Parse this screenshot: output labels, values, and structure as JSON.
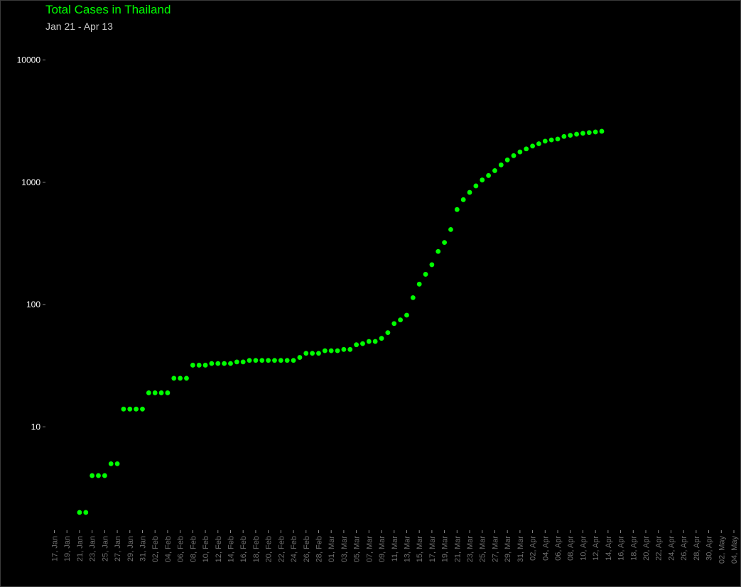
{
  "chart_data": {
    "type": "scatter",
    "title": "Total Cases in Thailand",
    "subtitle": "Jan 21 - Apr 13",
    "xlabel": "",
    "ylabel": "",
    "yscale": "log",
    "ylim": [
      1.2,
      14000
    ],
    "xlim": [
      "2020-01-16",
      "2020-05-05"
    ],
    "grid": false,
    "colors": {
      "background": "#000000",
      "points": "#00ff00",
      "title": "#00ff00",
      "subtitle": "#c8c8c8",
      "y_ticks": "#ffffff",
      "x_ticks": "#6e6e6e"
    },
    "y_ticks": [
      {
        "value": 10,
        "label": "10"
      },
      {
        "value": 100,
        "label": "100"
      },
      {
        "value": 1000,
        "label": "1000"
      },
      {
        "value": 10000,
        "label": "10000"
      }
    ],
    "x_ticks": [
      {
        "date": "2020-01-17",
        "label": "17, Jan"
      },
      {
        "date": "2020-01-19",
        "label": "19, Jan"
      },
      {
        "date": "2020-01-21",
        "label": "21, Jan"
      },
      {
        "date": "2020-01-23",
        "label": "23, Jan"
      },
      {
        "date": "2020-01-25",
        "label": "25, Jan"
      },
      {
        "date": "2020-01-27",
        "label": "27, Jan"
      },
      {
        "date": "2020-01-29",
        "label": "29, Jan"
      },
      {
        "date": "2020-01-31",
        "label": "31, Jan"
      },
      {
        "date": "2020-02-02",
        "label": "02, Feb"
      },
      {
        "date": "2020-02-04",
        "label": "04, Feb"
      },
      {
        "date": "2020-02-06",
        "label": "06, Feb"
      },
      {
        "date": "2020-02-08",
        "label": "08, Feb"
      },
      {
        "date": "2020-02-10",
        "label": "10, Feb"
      },
      {
        "date": "2020-02-12",
        "label": "12, Feb"
      },
      {
        "date": "2020-02-14",
        "label": "14, Feb"
      },
      {
        "date": "2020-02-16",
        "label": "16, Feb"
      },
      {
        "date": "2020-02-18",
        "label": "18, Feb"
      },
      {
        "date": "2020-02-20",
        "label": "20, Feb"
      },
      {
        "date": "2020-02-22",
        "label": "22, Feb"
      },
      {
        "date": "2020-02-24",
        "label": "24, Feb"
      },
      {
        "date": "2020-02-26",
        "label": "26, Feb"
      },
      {
        "date": "2020-02-28",
        "label": "28, Feb"
      },
      {
        "date": "2020-03-01",
        "label": "01, Mar"
      },
      {
        "date": "2020-03-03",
        "label": "03, Mar"
      },
      {
        "date": "2020-03-05",
        "label": "05, Mar"
      },
      {
        "date": "2020-03-07",
        "label": "07, Mar"
      },
      {
        "date": "2020-03-09",
        "label": "09, Mar"
      },
      {
        "date": "2020-03-11",
        "label": "11, Mar"
      },
      {
        "date": "2020-03-13",
        "label": "13, Mar"
      },
      {
        "date": "2020-03-15",
        "label": "15, Mar"
      },
      {
        "date": "2020-03-17",
        "label": "17, Mar"
      },
      {
        "date": "2020-03-19",
        "label": "19, Mar"
      },
      {
        "date": "2020-03-21",
        "label": "21, Mar"
      },
      {
        "date": "2020-03-23",
        "label": "23, Mar"
      },
      {
        "date": "2020-03-25",
        "label": "25, Mar"
      },
      {
        "date": "2020-03-27",
        "label": "27, Mar"
      },
      {
        "date": "2020-03-29",
        "label": "29, Mar"
      },
      {
        "date": "2020-03-31",
        "label": "31, Mar"
      },
      {
        "date": "2020-04-02",
        "label": "02, Apr"
      },
      {
        "date": "2020-04-04",
        "label": "04, Apr"
      },
      {
        "date": "2020-04-06",
        "label": "06, Apr"
      },
      {
        "date": "2020-04-08",
        "label": "08, Apr"
      },
      {
        "date": "2020-04-10",
        "label": "10, Apr"
      },
      {
        "date": "2020-04-12",
        "label": "12, Apr"
      },
      {
        "date": "2020-04-14",
        "label": "14, Apr"
      },
      {
        "date": "2020-04-16",
        "label": "16, Apr"
      },
      {
        "date": "2020-04-18",
        "label": "18, Apr"
      },
      {
        "date": "2020-04-20",
        "label": "20, Apr"
      },
      {
        "date": "2020-04-22",
        "label": "22, Apr"
      },
      {
        "date": "2020-04-24",
        "label": "24, Apr"
      },
      {
        "date": "2020-04-26",
        "label": "26, Apr"
      },
      {
        "date": "2020-04-28",
        "label": "28, Apr"
      },
      {
        "date": "2020-04-30",
        "label": "30, Apr"
      },
      {
        "date": "2020-05-02",
        "label": "02, May"
      },
      {
        "date": "2020-05-04",
        "label": "04, May"
      }
    ],
    "series": [
      {
        "points": [
          {
            "x": "2020-01-21",
            "y": 2
          },
          {
            "x": "2020-01-22",
            "y": 2
          },
          {
            "x": "2020-01-23",
            "y": 4
          },
          {
            "x": "2020-01-24",
            "y": 4
          },
          {
            "x": "2020-01-25",
            "y": 4
          },
          {
            "x": "2020-01-26",
            "y": 5
          },
          {
            "x": "2020-01-27",
            "y": 5
          },
          {
            "x": "2020-01-28",
            "y": 14
          },
          {
            "x": "2020-01-29",
            "y": 14
          },
          {
            "x": "2020-01-30",
            "y": 14
          },
          {
            "x": "2020-01-31",
            "y": 14
          },
          {
            "x": "2020-02-01",
            "y": 19
          },
          {
            "x": "2020-02-02",
            "y": 19
          },
          {
            "x": "2020-02-03",
            "y": 19
          },
          {
            "x": "2020-02-04",
            "y": 19
          },
          {
            "x": "2020-02-05",
            "y": 25
          },
          {
            "x": "2020-02-06",
            "y": 25
          },
          {
            "x": "2020-02-07",
            "y": 25
          },
          {
            "x": "2020-02-08",
            "y": 32
          },
          {
            "x": "2020-02-09",
            "y": 32
          },
          {
            "x": "2020-02-10",
            "y": 32
          },
          {
            "x": "2020-02-11",
            "y": 33
          },
          {
            "x": "2020-02-12",
            "y": 33
          },
          {
            "x": "2020-02-13",
            "y": 33
          },
          {
            "x": "2020-02-14",
            "y": 33
          },
          {
            "x": "2020-02-15",
            "y": 34
          },
          {
            "x": "2020-02-16",
            "y": 34
          },
          {
            "x": "2020-02-17",
            "y": 35
          },
          {
            "x": "2020-02-18",
            "y": 35
          },
          {
            "x": "2020-02-19",
            "y": 35
          },
          {
            "x": "2020-02-20",
            "y": 35
          },
          {
            "x": "2020-02-21",
            "y": 35
          },
          {
            "x": "2020-02-22",
            "y": 35
          },
          {
            "x": "2020-02-23",
            "y": 35
          },
          {
            "x": "2020-02-24",
            "y": 35
          },
          {
            "x": "2020-02-25",
            "y": 37
          },
          {
            "x": "2020-02-26",
            "y": 40
          },
          {
            "x": "2020-02-27",
            "y": 40
          },
          {
            "x": "2020-02-28",
            "y": 40
          },
          {
            "x": "2020-02-29",
            "y": 42
          },
          {
            "x": "2020-03-01",
            "y": 42
          },
          {
            "x": "2020-03-02",
            "y": 42
          },
          {
            "x": "2020-03-03",
            "y": 43
          },
          {
            "x": "2020-03-04",
            "y": 43
          },
          {
            "x": "2020-03-05",
            "y": 47
          },
          {
            "x": "2020-03-06",
            "y": 48
          },
          {
            "x": "2020-03-07",
            "y": 50
          },
          {
            "x": "2020-03-08",
            "y": 50
          },
          {
            "x": "2020-03-09",
            "y": 53
          },
          {
            "x": "2020-03-10",
            "y": 59
          },
          {
            "x": "2020-03-11",
            "y": 70
          },
          {
            "x": "2020-03-12",
            "y": 75
          },
          {
            "x": "2020-03-13",
            "y": 82
          },
          {
            "x": "2020-03-14",
            "y": 114
          },
          {
            "x": "2020-03-15",
            "y": 147
          },
          {
            "x": "2020-03-16",
            "y": 177
          },
          {
            "x": "2020-03-17",
            "y": 212
          },
          {
            "x": "2020-03-18",
            "y": 272
          },
          {
            "x": "2020-03-19",
            "y": 322
          },
          {
            "x": "2020-03-20",
            "y": 411
          },
          {
            "x": "2020-03-21",
            "y": 599
          },
          {
            "x": "2020-03-22",
            "y": 721
          },
          {
            "x": "2020-03-23",
            "y": 827
          },
          {
            "x": "2020-03-24",
            "y": 934
          },
          {
            "x": "2020-03-25",
            "y": 1045
          },
          {
            "x": "2020-03-26",
            "y": 1136
          },
          {
            "x": "2020-03-27",
            "y": 1245
          },
          {
            "x": "2020-03-28",
            "y": 1388
          },
          {
            "x": "2020-03-29",
            "y": 1524
          },
          {
            "x": "2020-03-30",
            "y": 1651
          },
          {
            "x": "2020-03-31",
            "y": 1771
          },
          {
            "x": "2020-04-01",
            "y": 1875
          },
          {
            "x": "2020-04-02",
            "y": 1978
          },
          {
            "x": "2020-04-03",
            "y": 2067
          },
          {
            "x": "2020-04-04",
            "y": 2169
          },
          {
            "x": "2020-04-05",
            "y": 2220
          },
          {
            "x": "2020-04-06",
            "y": 2258
          },
          {
            "x": "2020-04-07",
            "y": 2369
          },
          {
            "x": "2020-04-08",
            "y": 2423
          },
          {
            "x": "2020-04-09",
            "y": 2473
          },
          {
            "x": "2020-04-10",
            "y": 2518
          },
          {
            "x": "2020-04-11",
            "y": 2551
          },
          {
            "x": "2020-04-12",
            "y": 2579
          },
          {
            "x": "2020-04-13",
            "y": 2613
          }
        ]
      }
    ]
  }
}
